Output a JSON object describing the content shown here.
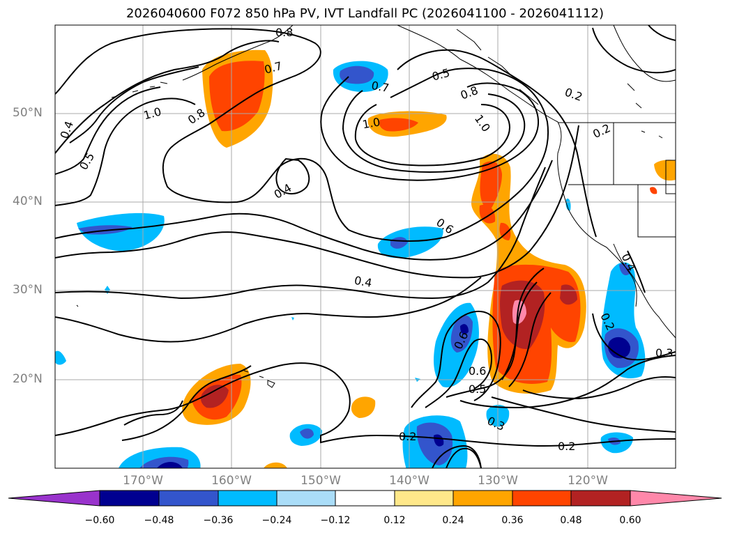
{
  "title": "2026040600 F072 850 hPa PV, IVT Landfall PC (2026041100 - 2026041112)",
  "lat_labels": [
    "50°N",
    "40°N",
    "30°N",
    "20°N"
  ],
  "lon_labels": [
    "170°W",
    "160°W",
    "150°W",
    "140°W",
    "130°W",
    "120°W"
  ],
  "contour_labels": [
    "0.8",
    "0.7",
    "0.5",
    "0.8",
    "0.7",
    "1.0",
    "0.8",
    "1.0",
    "1.0",
    "0.4",
    "0.5",
    "0.4",
    "0.6",
    "0.4",
    "0.2",
    "0.2",
    "0.2",
    "0.3",
    "0.6",
    "0.5",
    "0.6",
    "0.3",
    "0.2",
    "0.2",
    "0.4"
  ],
  "colorbar": {
    "ticks": [
      "−0.60",
      "−0.48",
      "−0.36",
      "−0.24",
      "−0.12",
      "0.12",
      "0.24",
      "0.36",
      "0.48",
      "0.60"
    ],
    "colors": [
      "#9933cc",
      "#000090",
      "#3355cc",
      "#00bbff",
      "#aaddf8",
      "#ffffff",
      "#ffe88a",
      "#ffa500",
      "#ff4400",
      "#b22222",
      "#ff88aa"
    ]
  },
  "colors": {
    "pos1": "#ffe88a",
    "pos2": "#ffa500",
    "pos3": "#ff4400",
    "pos4": "#b22222",
    "pos5": "#ff88aa",
    "neg1": "#aaddf8",
    "neg2": "#00bbff",
    "neg3": "#3355cc",
    "neg4": "#000090"
  }
}
